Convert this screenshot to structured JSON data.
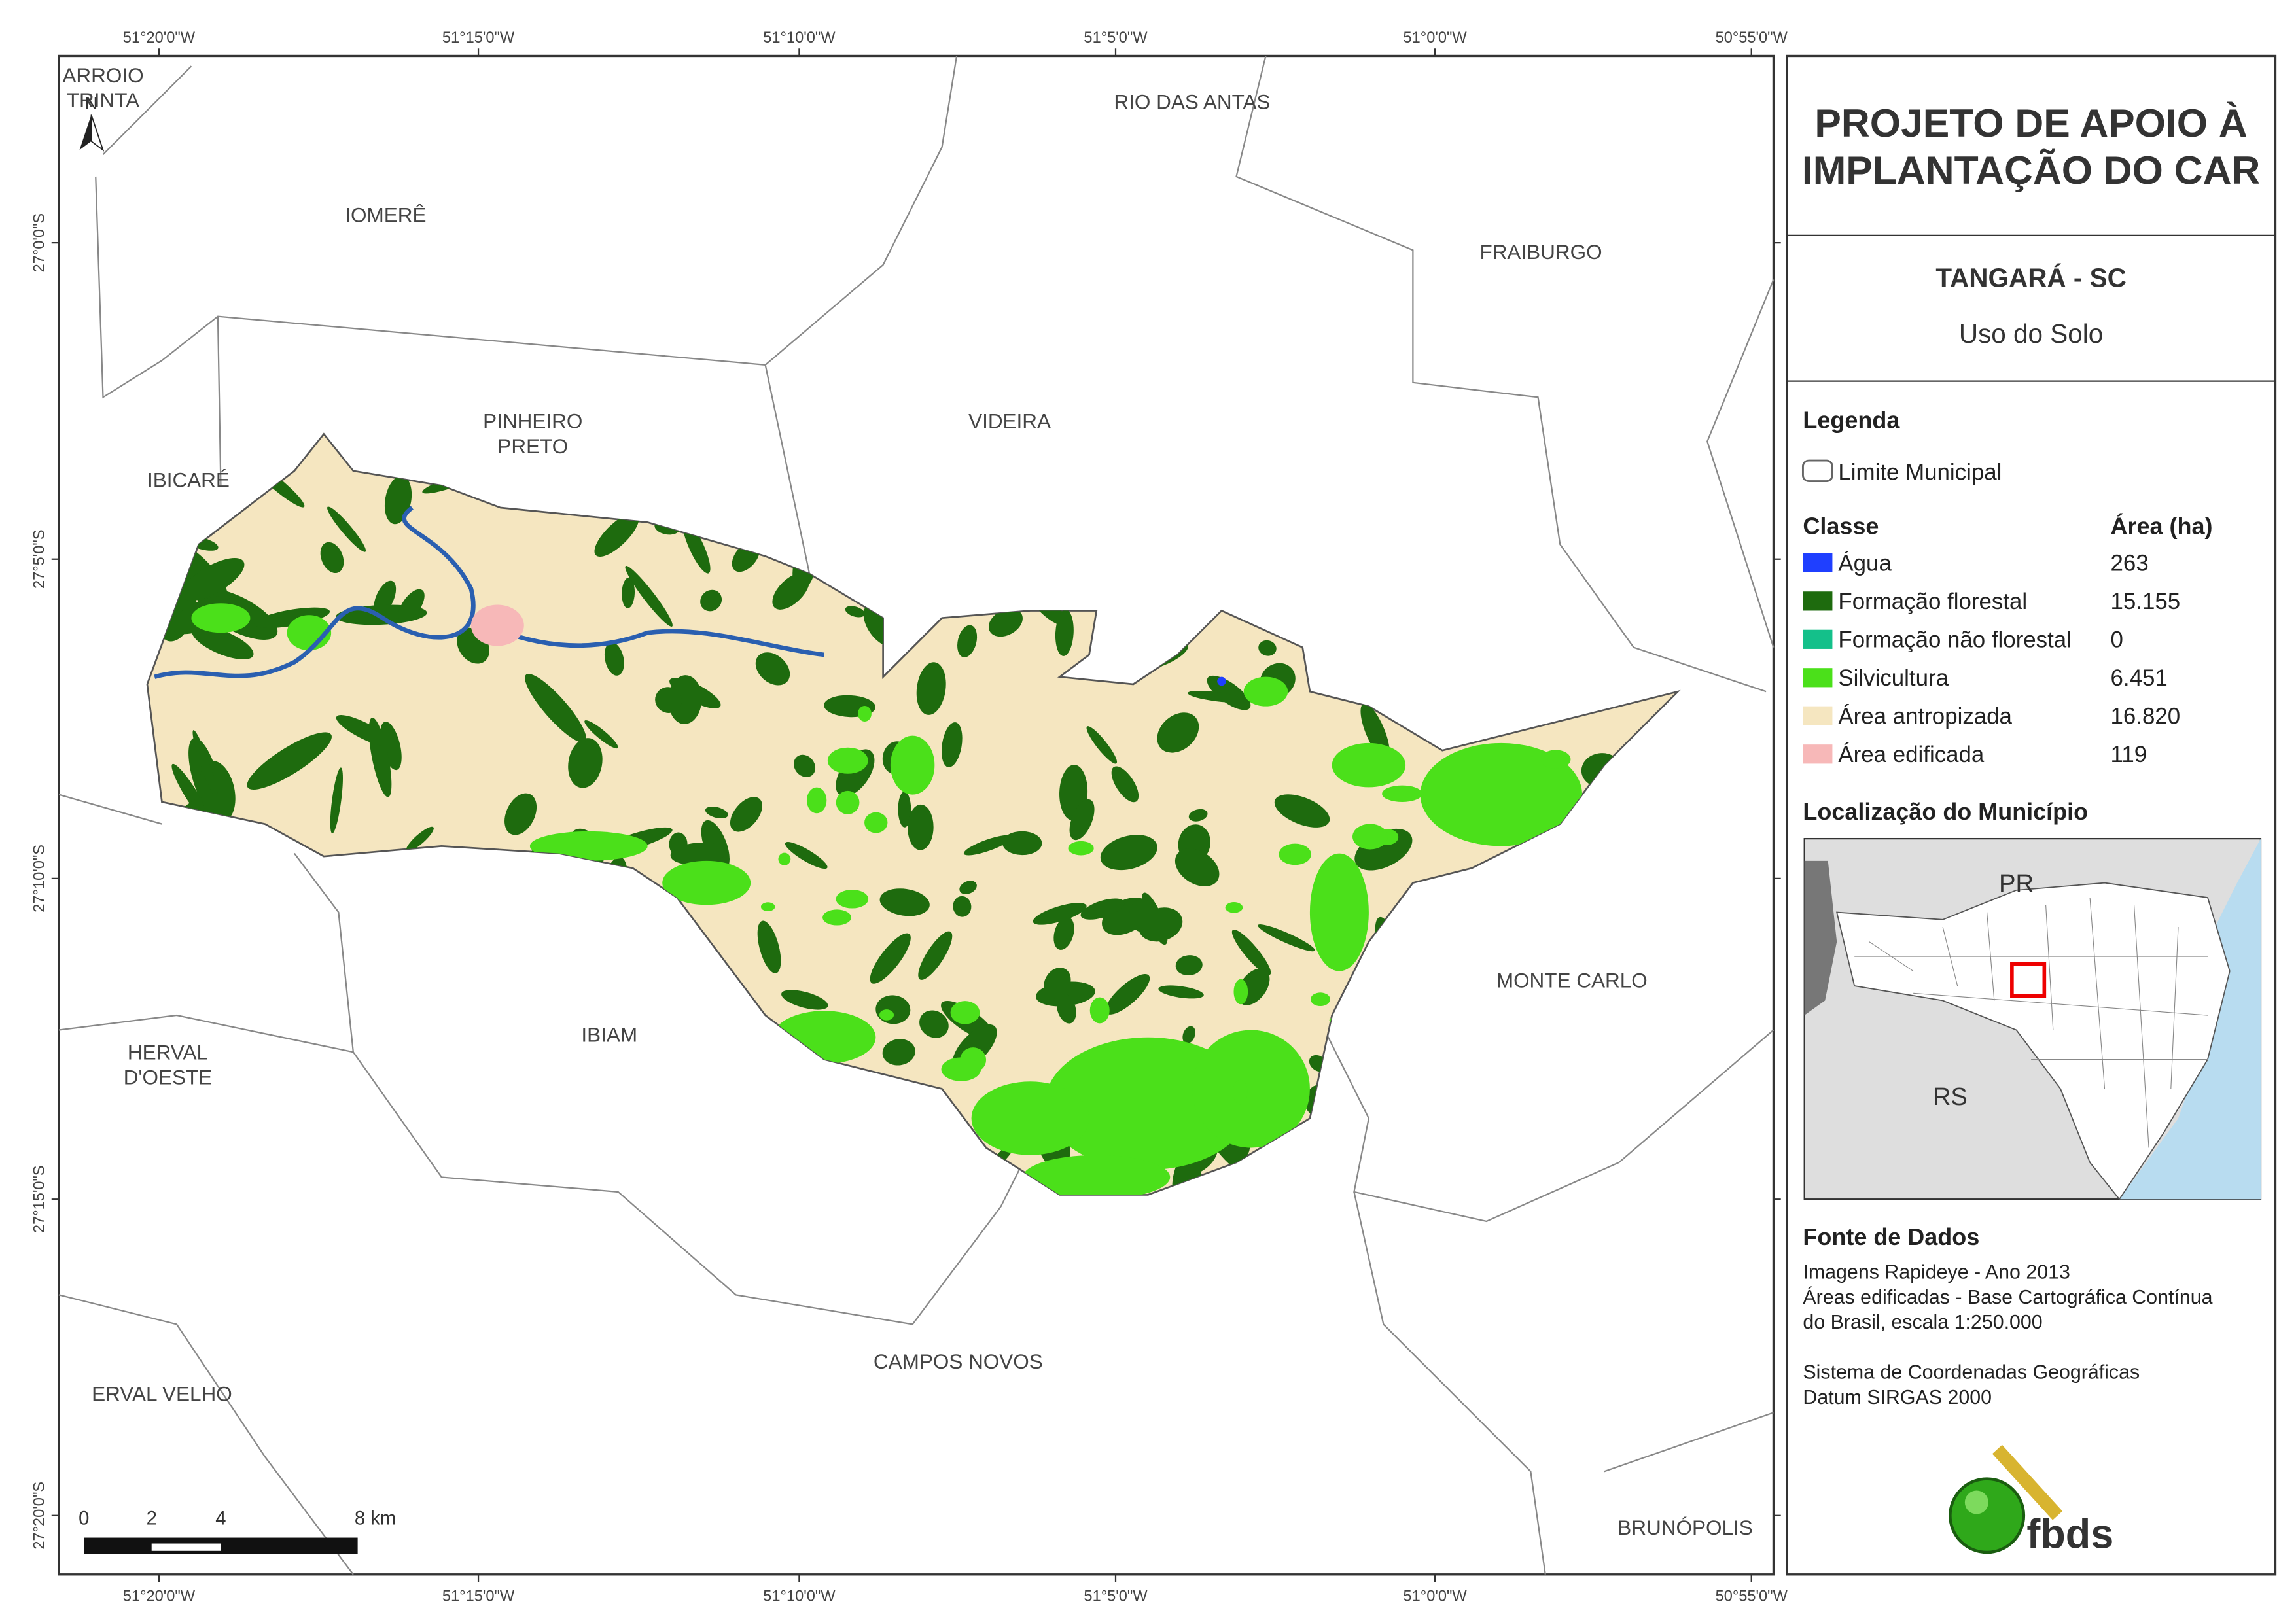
{
  "map": {
    "longitude_labels": [
      "51°20'0\"W",
      "51°15'0\"W",
      "51°10'0\"W",
      "51°5'0\"W",
      "51°0'0\"W",
      "50°55'0\"W"
    ],
    "latitude_labels": [
      "27°0'0\"S",
      "27°5'0\"S",
      "27°10'0\"S",
      "27°15'0\"S",
      "27°20'0\"S"
    ],
    "north_arrow": "N",
    "place_labels": [
      {
        "lines": [
          "ARROIO",
          "TRINTA"
        ]
      },
      {
        "lines": [
          "RIO DAS ANTAS"
        ]
      },
      {
        "lines": [
          "IOMERÊ"
        ]
      },
      {
        "lines": [
          "FRAIBURGO"
        ]
      },
      {
        "lines": [
          "PINHEIRO",
          "PRETO"
        ]
      },
      {
        "lines": [
          "VIDEIRA"
        ]
      },
      {
        "lines": [
          "IBICARÉ"
        ]
      },
      {
        "lines": [
          "MONTE CARLO"
        ]
      },
      {
        "lines": [
          "IBIAM"
        ]
      },
      {
        "lines": [
          "HERVAL",
          "D'OESTE"
        ]
      },
      {
        "lines": [
          "CAMPOS NOVOS"
        ]
      },
      {
        "lines": [
          "ERVAL VELHO"
        ]
      },
      {
        "lines": [
          "BRUNÓPOLIS"
        ]
      }
    ],
    "scale_labels": [
      "0",
      "2",
      "4",
      "8 km"
    ]
  },
  "panel": {
    "title": [
      "PROJETO DE APOIO À",
      "IMPLANTAÇÃO DO CAR"
    ],
    "municipality": "TANGARÁ - SC",
    "theme": "Uso do Solo",
    "legend_title": "Legenda",
    "boundary_label": "Limite Municipal",
    "class_header": "Classe",
    "area_header": "Área (ha)",
    "classes": [
      {
        "name": "Água",
        "area": "263",
        "color": "#1f3fff"
      },
      {
        "name": "Formação florestal",
        "area": "15.155",
        "color": "#1e6b0e"
      },
      {
        "name": "Formação não florestal",
        "area": "0",
        "color": "#14c08a"
      },
      {
        "name": "Silvicultura",
        "area": "6.451",
        "color": "#4be01a"
      },
      {
        "name": "Área antropizada",
        "area": "16.820",
        "color": "#f5e6c0"
      },
      {
        "name": "Área edificada",
        "area": "119",
        "color": "#f7b8b8"
      }
    ],
    "location_title": "Localização do Município",
    "locator_labels": [
      "PR",
      "RS"
    ],
    "source_title": "Fonte de Dados",
    "source_lines": [
      "Imagens Rapideye - Ano 2013",
      "Áreas edificadas - Base Cartográfica Contínua",
      "do Brasil, escala 1:250.000",
      "",
      "Sistema de Coordenadas Geográficas",
      "Datum SIRGAS 2000"
    ],
    "logo": "fbds"
  }
}
